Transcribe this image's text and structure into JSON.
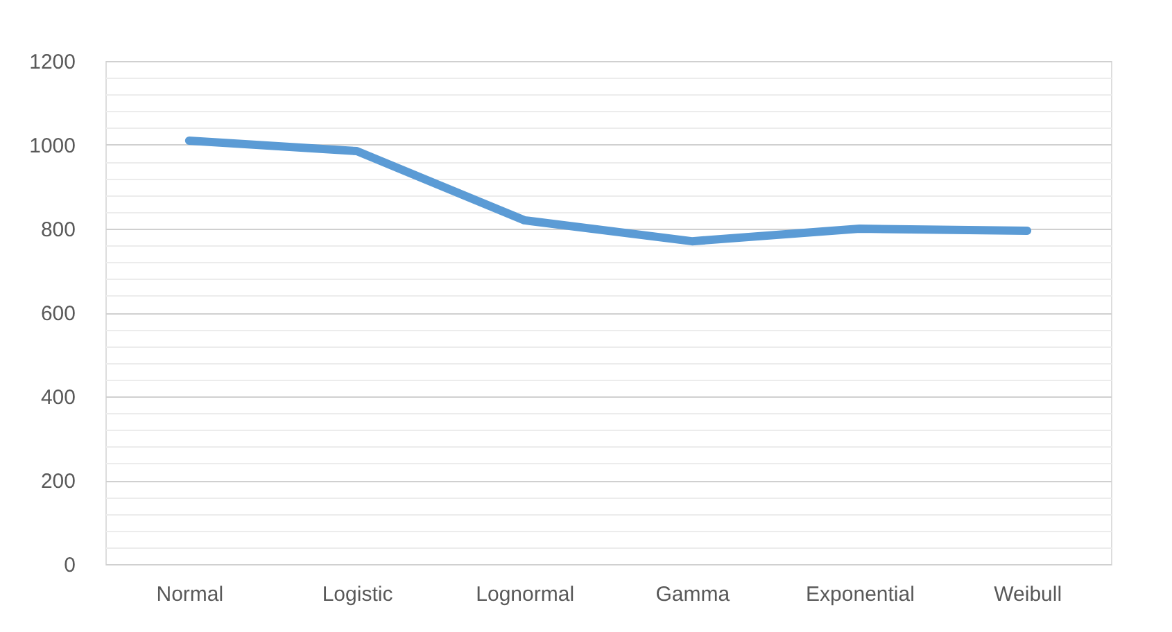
{
  "chart_data": {
    "type": "line",
    "categories": [
      "Normal",
      "Logistic",
      "Lognormal",
      "Gamma",
      "Exponential",
      "Weibull"
    ],
    "series": [
      {
        "color": "#5b9bd5",
        "values": [
          1010,
          985,
          820,
          770,
          800,
          795
        ]
      }
    ],
    "ylim": [
      0,
      1200
    ],
    "yticks": [
      0,
      {
        "value": 40,
        "label": null
      },
      {
        "value": 80,
        "label": null
      },
      {
        "value": 120,
        "label": null
      },
      {
        "value": 160,
        "label": null
      },
      200,
      {
        "value": 240,
        "label": null
      },
      {
        "value": 280,
        "label": null
      },
      {
        "value": 320,
        "label": null
      },
      {
        "value": 360,
        "label": null
      },
      400,
      {
        "value": 440,
        "label": null
      },
      {
        "value": 480,
        "label": null
      },
      {
        "value": 520,
        "label": null
      },
      {
        "value": 560,
        "label": null
      },
      600,
      {
        "value": 640,
        "label": null
      },
      {
        "value": 680,
        "label": null
      },
      {
        "value": 720,
        "label": null
      },
      {
        "value": 760,
        "label": null
      },
      800,
      {
        "value": 840,
        "label": null
      },
      {
        "value": 880,
        "label": null
      },
      {
        "value": 920,
        "label": null
      },
      {
        "value": 960,
        "label": null
      },
      1000,
      {
        "value": 1040,
        "label": null
      },
      {
        "value": 1080,
        "label": null
      },
      {
        "value": 1120,
        "label": null
      },
      {
        "value": 1160,
        "label": null
      },
      1200
    ],
    "grid": "y",
    "legend": false,
    "marker": "none",
    "line_style": "solid"
  }
}
